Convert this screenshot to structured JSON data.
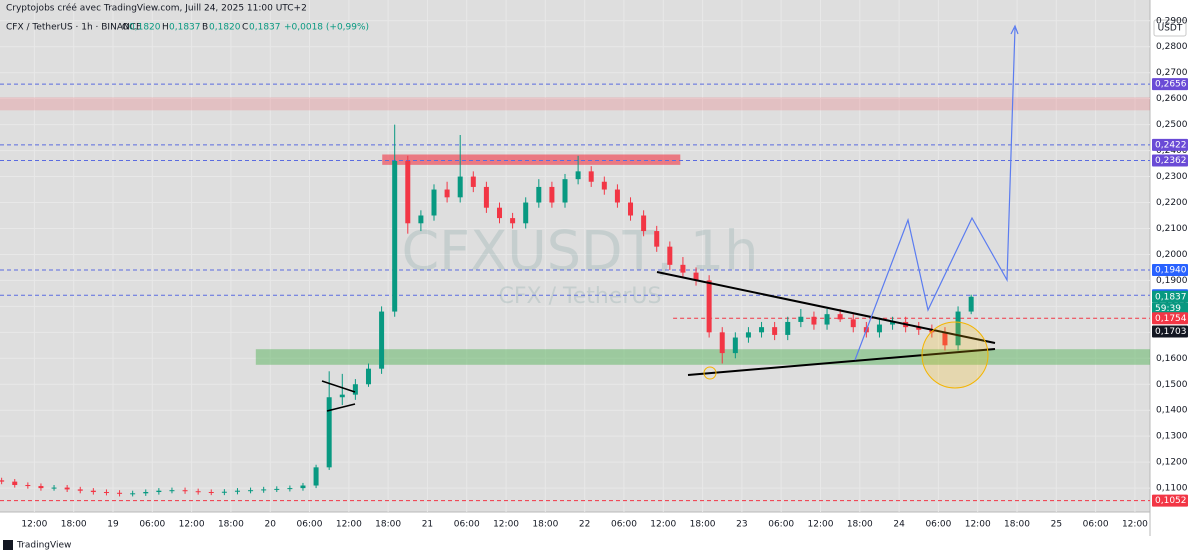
{
  "chart_data": {
    "type": "candlestick",
    "title": "Cryptojobs créé avec TradingView.com, Juill 24, 2025 11:00 UTC+2",
    "subtitle": "CFX / TetherUS · 1h · BINANCE",
    "legend": [
      {
        "key": "O",
        "value": "0,1820"
      },
      {
        "key": "H",
        "value": "0,1837"
      },
      {
        "key": "B",
        "value": "0,1820"
      },
      {
        "key": "C",
        "value": "0,1837"
      }
    ],
    "change": "+0,0018 (+0,99%)",
    "currency": "USDT",
    "watermark": "CFXUSDT, 1h",
    "watermark_sub": "CFX / TetherUS",
    "footer": "TradingView",
    "countdown": "59:39",
    "up_color": "#089981",
    "down_color": "#f23645",
    "grid": true,
    "xlim": [
      6.75,
      182.3
    ],
    "ylim": [
      0.1008,
      0.298
    ],
    "xticks": [
      {
        "value": 12,
        "label": "12:00"
      },
      {
        "value": 18,
        "label": "18:00"
      },
      {
        "value": 24,
        "label": "19"
      },
      {
        "value": 30,
        "label": "06:00"
      },
      {
        "value": 36,
        "label": "12:00"
      },
      {
        "value": 42,
        "label": "18:00"
      },
      {
        "value": 48,
        "label": "20"
      },
      {
        "value": 54,
        "label": "06:00"
      },
      {
        "value": 60,
        "label": "12:00"
      },
      {
        "value": 66,
        "label": "18:00"
      },
      {
        "value": 72,
        "label": "21"
      },
      {
        "value": 78,
        "label": "06:00"
      },
      {
        "value": 84,
        "label": "12:00"
      },
      {
        "value": 90,
        "label": "18:00"
      },
      {
        "value": 96,
        "label": "22"
      },
      {
        "value": 102,
        "label": "06:00"
      },
      {
        "value": 108,
        "label": "12:00"
      },
      {
        "value": 114,
        "label": "18:00"
      },
      {
        "value": 120,
        "label": "23"
      },
      {
        "value": 126,
        "label": "06:00"
      },
      {
        "value": 132,
        "label": "12:00"
      },
      {
        "value": 138,
        "label": "18:00"
      },
      {
        "value": 144,
        "label": "24"
      },
      {
        "value": 150,
        "label": "06:00"
      },
      {
        "value": 156,
        "label": "12:00"
      },
      {
        "value": 162,
        "label": "18:00"
      },
      {
        "value": 168,
        "label": "25"
      },
      {
        "value": 174,
        "label": "06:00"
      },
      {
        "value": 180,
        "label": "12:00"
      }
    ],
    "yticks": [
      {
        "value": 0.11,
        "label": "0,1100"
      },
      {
        "value": 0.12,
        "label": "0,1200"
      },
      {
        "value": 0.13,
        "label": "0,1300"
      },
      {
        "value": 0.14,
        "label": "0,1400"
      },
      {
        "value": 0.15,
        "label": "0,1500"
      },
      {
        "value": 0.16,
        "label": "0,1600"
      },
      {
        "value": 0.17,
        "label": "0,1700"
      },
      {
        "value": 0.18,
        "label": "0,1800"
      },
      {
        "value": 0.19,
        "label": "0,1900"
      },
      {
        "value": 0.2,
        "label": "0,2000"
      },
      {
        "value": 0.21,
        "label": "0,2100"
      },
      {
        "value": 0.22,
        "label": "0,2200"
      },
      {
        "value": 0.23,
        "label": "0,2300"
      },
      {
        "value": 0.24,
        "label": "0,2400"
      },
      {
        "value": 0.25,
        "label": "0,2500"
      },
      {
        "value": 0.26,
        "label": "0,2600"
      },
      {
        "value": 0.27,
        "label": "0,2700"
      },
      {
        "value": 0.28,
        "label": "0,2800"
      },
      {
        "value": 0.29,
        "label": "0,2900"
      }
    ],
    "zones": [
      {
        "low": 0.2555,
        "high": 0.2605,
        "color": "rgba(242,54,69,0.18)"
      },
      {
        "low": 0.2345,
        "high": 0.2385,
        "from": 65.1,
        "to": 110.6,
        "color": "rgba(242,54,69,0.6)"
      },
      {
        "low": 0.1575,
        "high": 0.1635,
        "from": 45.8,
        "color": "rgba(76,175,80,0.45)"
      }
    ],
    "levels": [
      {
        "value": 0.2656,
        "label": "0,2656",
        "color": "#6a4bd6",
        "line": true,
        "line_color": "#5a6be0"
      },
      {
        "value": 0.2422,
        "label": "0,2422",
        "color": "#6a4bd6",
        "line": true,
        "line_color": "#5a6be0"
      },
      {
        "value": 0.2362,
        "label": "0,2362",
        "color": "#6a4bd6",
        "line": true,
        "line_color": "#5a6be0"
      },
      {
        "value": 0.194,
        "label": "0,1940",
        "color": "#2962ff",
        "line": true,
        "line_color": "#5a6be0"
      },
      {
        "value": 0.1843,
        "label": "0,1843",
        "color": "#2962ff",
        "line": true,
        "line_color": "#5a6be0"
      },
      {
        "value": 0.1837,
        "label": "0,1837",
        "color": "#089981",
        "line": false
      },
      {
        "value": 0.1754,
        "label": "0,1754",
        "color": "#f23645",
        "line": true,
        "line_color": "#f23645",
        "from": 109.5
      },
      {
        "value": 0.1703,
        "label": "0,1703",
        "color": "#131722",
        "line": false
      },
      {
        "value": 0.1052,
        "label": "0,1052",
        "color": "#f23645",
        "line": true,
        "line_color": "#f23645"
      }
    ],
    "x": [
      7,
      9,
      11,
      13,
      15,
      17,
      19,
      21,
      23,
      25,
      27,
      29,
      31,
      33,
      35,
      37,
      39,
      41,
      43,
      45,
      47,
      49,
      51,
      53,
      55,
      57,
      59,
      61,
      63,
      65,
      67,
      69,
      71,
      73,
      75,
      77,
      79,
      81,
      83,
      85,
      87,
      89,
      91,
      93,
      95,
      97,
      99,
      101,
      103,
      105,
      107,
      109,
      111,
      113,
      115,
      117,
      119,
      121,
      123,
      125,
      127,
      129,
      131,
      133,
      135,
      137,
      139,
      141,
      143,
      145,
      147,
      149,
      151,
      153,
      155
    ],
    "open": [
      0.113,
      0.1125,
      0.1112,
      0.1108,
      0.11,
      0.1102,
      0.1095,
      0.109,
      0.1085,
      0.1082,
      0.1078,
      0.108,
      0.1085,
      0.109,
      0.1092,
      0.1088,
      0.1085,
      0.1083,
      0.1086,
      0.109,
      0.1092,
      0.1095,
      0.1097,
      0.11,
      0.111,
      0.118,
      0.145,
      0.146,
      0.15,
      0.156,
      0.178,
      0.236,
      0.212,
      0.215,
      0.225,
      0.222,
      0.23,
      0.226,
      0.218,
      0.214,
      0.212,
      0.22,
      0.226,
      0.22,
      0.229,
      0.232,
      0.228,
      0.225,
      0.22,
      0.215,
      0.209,
      0.203,
      0.196,
      0.193,
      0.19,
      0.17,
      0.162,
      0.168,
      0.17,
      0.172,
      0.169,
      0.174,
      0.176,
      0.173,
      0.177,
      0.175,
      0.172,
      0.17,
      0.173,
      0.174,
      0.172,
      0.171,
      0.17,
      0.165,
      0.178
    ],
    "high": [
      0.114,
      0.1135,
      0.1122,
      0.1118,
      0.1112,
      0.1112,
      0.1105,
      0.11,
      0.1095,
      0.1092,
      0.109,
      0.1095,
      0.11,
      0.1102,
      0.1102,
      0.1098,
      0.1095,
      0.1096,
      0.11,
      0.1102,
      0.1105,
      0.1107,
      0.111,
      0.112,
      0.119,
      0.155,
      0.154,
      0.152,
      0.158,
      0.18,
      0.25,
      0.238,
      0.217,
      0.227,
      0.228,
      0.246,
      0.232,
      0.228,
      0.22,
      0.216,
      0.222,
      0.229,
      0.228,
      0.231,
      0.238,
      0.234,
      0.23,
      0.227,
      0.222,
      0.217,
      0.211,
      0.205,
      0.199,
      0.195,
      0.192,
      0.172,
      0.17,
      0.172,
      0.174,
      0.174,
      0.176,
      0.179,
      0.178,
      0.179,
      0.179,
      0.177,
      0.174,
      0.175,
      0.176,
      0.176,
      0.174,
      0.173,
      0.172,
      0.18,
      0.1845
    ],
    "low": [
      0.1115,
      0.1102,
      0.1098,
      0.109,
      0.109,
      0.1085,
      0.108,
      0.1075,
      0.1072,
      0.1068,
      0.1068,
      0.107,
      0.1075,
      0.108,
      0.1078,
      0.1075,
      0.1073,
      0.1073,
      0.1076,
      0.108,
      0.1082,
      0.1085,
      0.1087,
      0.109,
      0.11,
      0.117,
      0.142,
      0.144,
      0.149,
      0.154,
      0.176,
      0.208,
      0.209,
      0.213,
      0.22,
      0.22,
      0.224,
      0.216,
      0.212,
      0.21,
      0.21,
      0.218,
      0.218,
      0.218,
      0.227,
      0.226,
      0.223,
      0.218,
      0.213,
      0.207,
      0.201,
      0.194,
      0.191,
      0.188,
      0.168,
      0.158,
      0.16,
      0.166,
      0.168,
      0.167,
      0.167,
      0.172,
      0.171,
      0.171,
      0.174,
      0.17,
      0.168,
      0.168,
      0.171,
      0.17,
      0.169,
      0.168,
      0.163,
      0.163,
      0.177
    ],
    "close": [
      0.1125,
      0.1112,
      0.1108,
      0.11,
      0.1102,
      0.1095,
      0.109,
      0.1085,
      0.1082,
      0.1078,
      0.108,
      0.1085,
      0.109,
      0.1092,
      0.1088,
      0.1085,
      0.1083,
      0.1086,
      0.109,
      0.1092,
      0.1095,
      0.1097,
      0.11,
      0.111,
      0.118,
      0.145,
      0.146,
      0.15,
      0.156,
      0.178,
      0.236,
      0.212,
      0.215,
      0.225,
      0.222,
      0.23,
      0.226,
      0.218,
      0.214,
      0.212,
      0.22,
      0.226,
      0.22,
      0.229,
      0.232,
      0.228,
      0.225,
      0.22,
      0.215,
      0.209,
      0.203,
      0.196,
      0.193,
      0.19,
      0.17,
      0.162,
      0.168,
      0.17,
      0.172,
      0.169,
      0.174,
      0.176,
      0.173,
      0.177,
      0.175,
      0.172,
      0.17,
      0.173,
      0.174,
      0.172,
      0.171,
      0.17,
      0.165,
      0.178,
      0.1837
    ]
  }
}
